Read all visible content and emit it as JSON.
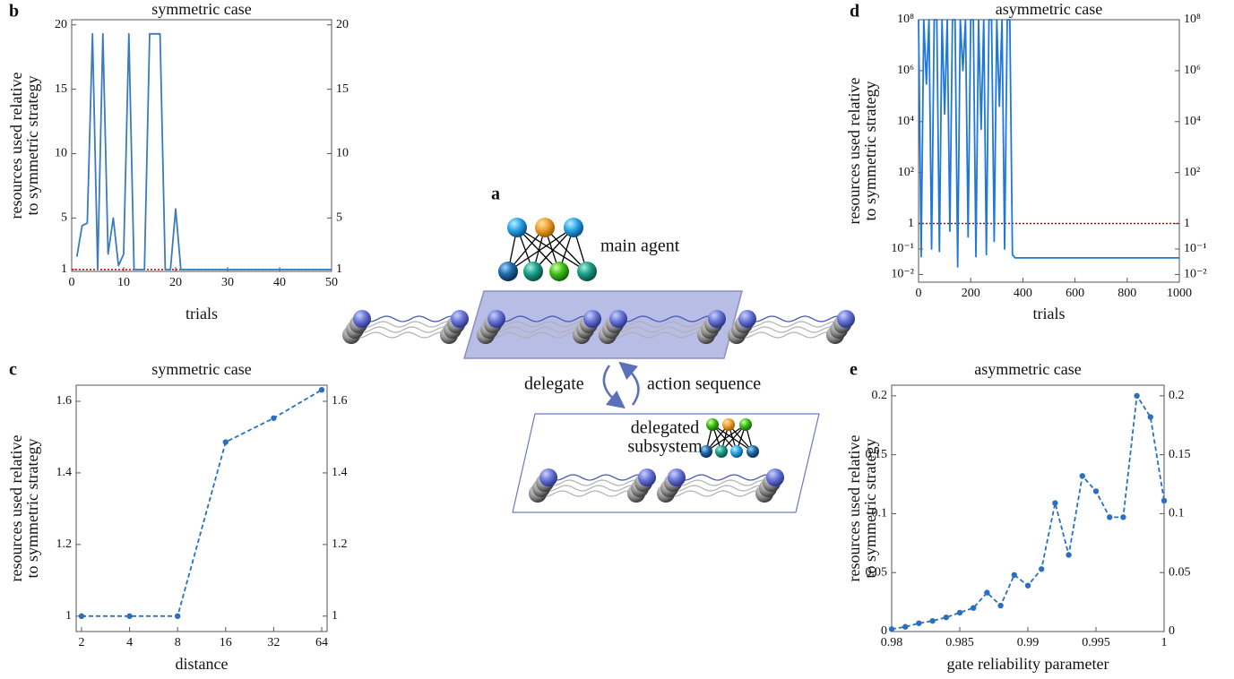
{
  "diagram": {
    "panel": "a",
    "main_agent": "main agent",
    "delegate": "delegate",
    "action_sequence": "action sequence",
    "subsystem_line1": "delegated",
    "subsystem_line2": "subsystem"
  },
  "chart_data": [
    {
      "panel": "b",
      "type": "line",
      "title": "symmetric case",
      "xlabel": "trials",
      "ylabel": [
        "resources used relative",
        "to symmetric strategy"
      ],
      "x": [
        1,
        2,
        3,
        4,
        5,
        6,
        7,
        8,
        9,
        10,
        11,
        12,
        13,
        14,
        15,
        16,
        17,
        18,
        19,
        20,
        21,
        22,
        23,
        24,
        25,
        26,
        27,
        28,
        29,
        30,
        31,
        32,
        33,
        34,
        35,
        36,
        37,
        38,
        39,
        40,
        41,
        42,
        43,
        44,
        45,
        46,
        47,
        48,
        49,
        50
      ],
      "values": [
        2,
        4.4,
        4.6,
        19.3,
        1,
        19.3,
        2.2,
        5,
        1.3,
        2.2,
        19.3,
        1,
        1,
        1,
        19.3,
        19.3,
        19.3,
        1,
        1,
        5.7,
        1,
        1,
        1,
        1,
        1,
        1,
        1,
        1,
        1,
        1,
        1,
        1,
        1,
        1,
        1,
        1,
        1,
        1,
        1,
        1,
        1,
        1,
        1,
        1,
        1,
        1,
        1,
        1,
        1,
        1
      ],
      "color": "#3a7bbf",
      "linestyle": "solid",
      "markers": false,
      "xlim": [
        0,
        50
      ],
      "ylim": [
        0.85,
        20.4
      ],
      "xticks": [
        0,
        10,
        20,
        30,
        40,
        50
      ],
      "yticks": [
        1,
        5,
        10,
        15,
        20
      ],
      "reference": {
        "value": 1,
        "color": "#cc0000"
      },
      "mirror_y": true
    },
    {
      "panel": "c",
      "type": "line",
      "title": "symmetric case",
      "xlabel": "distance",
      "ylabel": [
        "resources used relative",
        "to symmetric strategy"
      ],
      "categories": [
        "2",
        "4",
        "8",
        "16",
        "32",
        "64"
      ],
      "values": [
        1,
        1,
        1,
        1.486,
        1.553,
        1.632
      ],
      "color": "#2a6fc0",
      "linestyle": "dashed",
      "markers": true,
      "ylim": [
        0.957,
        1.645
      ],
      "yticks": [
        1,
        1.2,
        1.4,
        1.6
      ],
      "mirror_y": true
    },
    {
      "panel": "d",
      "type": "line",
      "title": "asymmetric case",
      "xlabel": "trials",
      "ylabel": [
        "resources used relative",
        "to symmetric strategy"
      ],
      "x": [
        0,
        10,
        20,
        30,
        40,
        50,
        60,
        70,
        80,
        90,
        100,
        110,
        120,
        130,
        140,
        150,
        160,
        170,
        180,
        190,
        200,
        210,
        220,
        230,
        240,
        250,
        260,
        270,
        280,
        290,
        300,
        310,
        320,
        330,
        340,
        350,
        360,
        370,
        1000
      ],
      "values": [
        100000000,
        0.05,
        100000000,
        300000,
        100000000,
        0.1,
        100000000,
        100000000,
        0.08,
        100000000,
        20000,
        100000000,
        0.5,
        100000000,
        100000000,
        0.02,
        100000000,
        1000000,
        100000000,
        0.3,
        100000000,
        100000000,
        0.05,
        100000000,
        5000,
        100000000,
        0.06,
        100000000,
        100000000,
        0.2,
        100000000,
        40000,
        100000000,
        0.1,
        100000000,
        100000000,
        0.06,
        0.045,
        0.045
      ],
      "color": "#1f78d8",
      "linestyle": "solid",
      "markers": false,
      "ylog": true,
      "xlim": [
        0,
        1000
      ],
      "ylim": [
        0.005,
        100000000
      ],
      "xticks": [
        0,
        200,
        400,
        600,
        800,
        1000
      ],
      "yticks": [
        {
          "value": 0.01,
          "label": "10⁻²"
        },
        {
          "value": 0.1,
          "label": "10⁻¹"
        },
        1,
        {
          "value": 100,
          "label": "10²"
        },
        {
          "value": 10000,
          "label": "10⁴"
        },
        {
          "value": 1000000,
          "label": "10⁶"
        },
        {
          "value": 100000000,
          "label": "10⁸"
        }
      ],
      "reference": {
        "value": 1,
        "color": "#cc0000"
      },
      "mirror_y": true
    },
    {
      "panel": "e",
      "type": "line",
      "title": "asymmetric case",
      "xlabel": "gate reliability parameter",
      "ylabel": [
        "resources used relative",
        "to symmetric strategy"
      ],
      "x": [
        0.98,
        0.981,
        0.982,
        0.983,
        0.984,
        0.985,
        0.986,
        0.987,
        0.988,
        0.989,
        0.99,
        0.991,
        0.992,
        0.993,
        0.994,
        0.995,
        0.996,
        0.997,
        0.998,
        0.999,
        1
      ],
      "values": [
        0.002,
        0.004,
        0.007,
        0.009,
        0.012,
        0.016,
        0.02,
        0.033,
        0.022,
        0.048,
        0.039,
        0.053,
        0.109,
        0.065,
        0.132,
        0.119,
        0.097,
        0.097,
        0.2,
        0.182,
        0.111
      ],
      "color": "#2a6fc0",
      "linestyle": "dashed",
      "markers": true,
      "xlim": [
        0.98,
        1
      ],
      "ylim": [
        0,
        0.209
      ],
      "xticks": [
        0.98,
        0.985,
        0.99,
        0.995,
        1
      ],
      "yticks": [
        0,
        0.05,
        0.1,
        0.15,
        0.2
      ],
      "mirror_y": true
    }
  ]
}
